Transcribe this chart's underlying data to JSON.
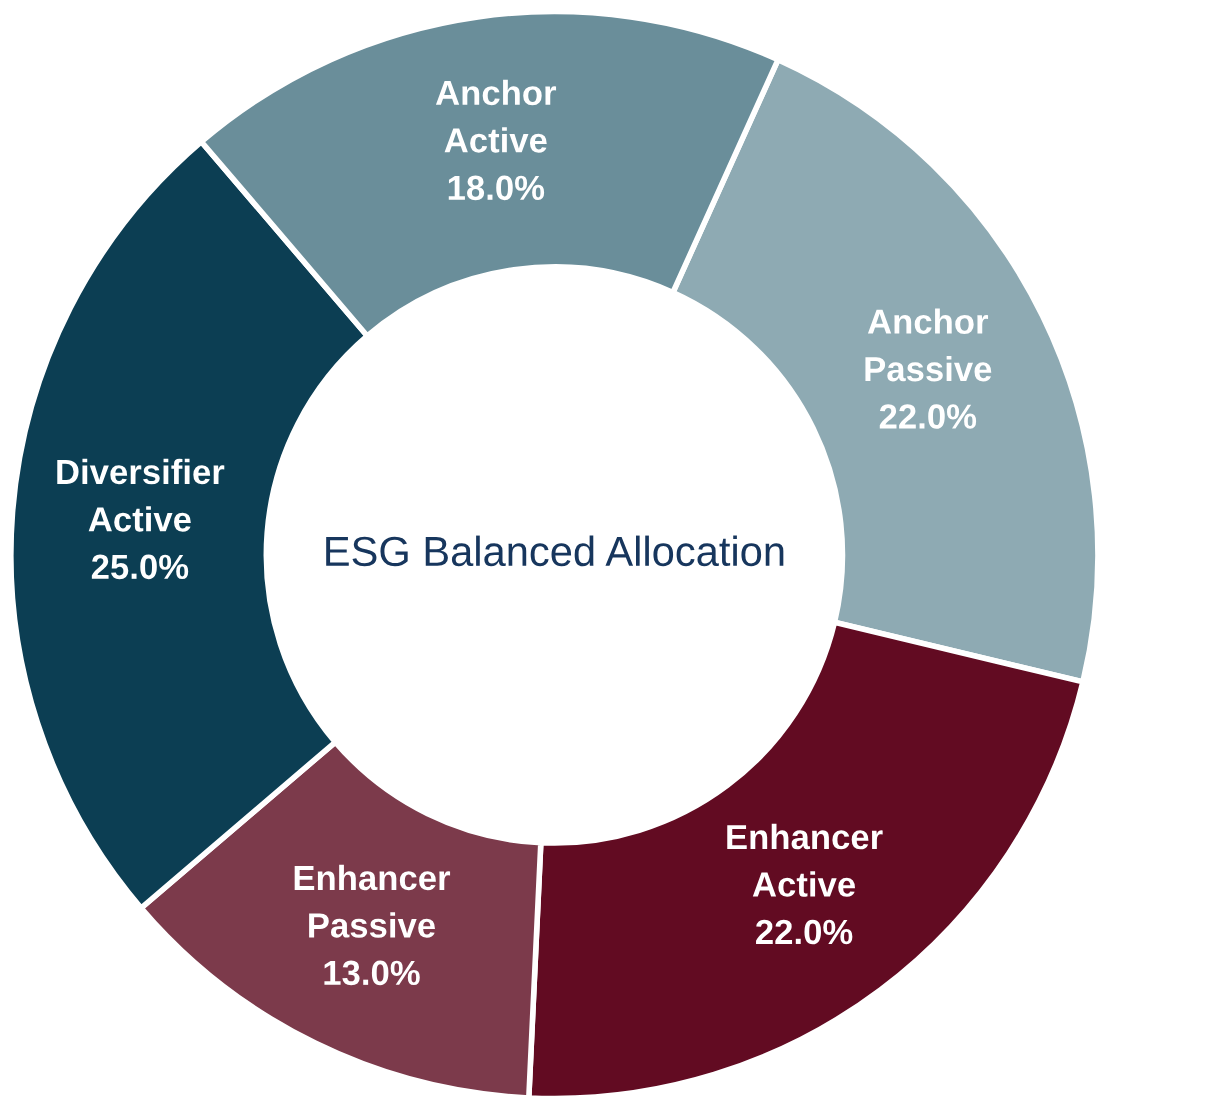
{
  "chart_data": {
    "type": "donut",
    "title": "ESG Balanced Allocation",
    "categories": [
      "Anchor Passive",
      "Enhancer Active",
      "Enhancer Passive",
      "Diversifier Active",
      "Anchor Active"
    ],
    "values": [
      22.0,
      22.0,
      13.0,
      25.0,
      18.0
    ],
    "colors": [
      "#8eaab3",
      "#620b22",
      "#7c3a4b",
      "#0c3e53",
      "#6a8e9a"
    ],
    "value_labels": [
      "22.0%",
      "22.0%",
      "13.0%",
      "25.0%",
      "18.0%"
    ],
    "legend": false
  }
}
